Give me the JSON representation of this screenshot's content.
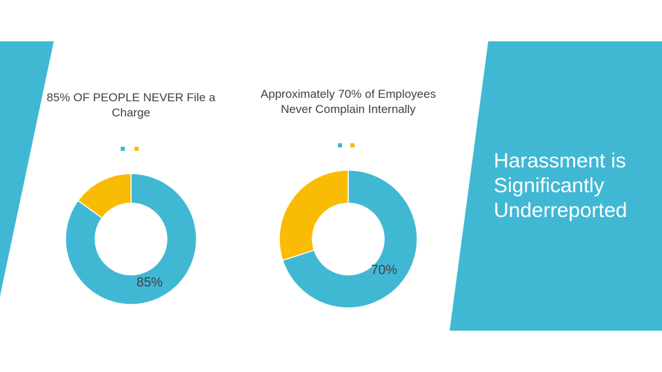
{
  "slide": {
    "main_title": "Harassment is Significantly Underreported",
    "colors": {
      "accent": "#40B8D4",
      "secondary": "#FABB04",
      "text": "#404040"
    }
  },
  "chart_data": [
    {
      "type": "donut",
      "title": "85% OF PEOPLE NEVER File a Charge",
      "slices": [
        {
          "value": 85,
          "color": "#40B8D4"
        },
        {
          "value": 15,
          "color": "#FABB04"
        }
      ],
      "data_label": "85%",
      "legend": "top-center"
    },
    {
      "type": "donut",
      "title": "Approximately 70% of Employees Never Complain Internally",
      "slices": [
        {
          "value": 70,
          "color": "#40B8D4"
        },
        {
          "value": 30,
          "color": "#FABB04"
        }
      ],
      "data_label": "70%",
      "legend": "top-center"
    }
  ]
}
